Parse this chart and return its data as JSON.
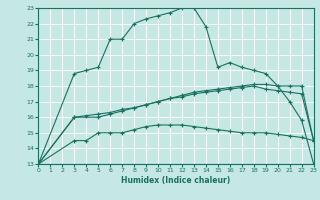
{
  "xlabel": "Humidex (Indice chaleur)",
  "xlim": [
    0,
    23
  ],
  "ylim": [
    13,
    23
  ],
  "xticks": [
    0,
    1,
    2,
    3,
    4,
    5,
    6,
    7,
    8,
    9,
    10,
    11,
    12,
    13,
    14,
    15,
    16,
    17,
    18,
    19,
    20,
    21,
    22,
    23
  ],
  "yticks": [
    13,
    14,
    15,
    16,
    17,
    18,
    19,
    20,
    21,
    22,
    23
  ],
  "background_color": "#c5e8e4",
  "grid_color": "#ffffff",
  "line_color": "#1a7060",
  "line1_x": [
    0,
    23
  ],
  "line1_y": [
    13,
    13
  ],
  "line2_x": [
    0,
    3,
    4,
    5,
    6,
    7,
    8,
    9,
    10,
    11,
    12,
    13,
    14,
    15,
    16,
    17,
    18,
    19,
    20,
    21,
    22,
    23
  ],
  "line2_y": [
    13,
    14.5,
    14.5,
    15.0,
    15.0,
    15.0,
    15.2,
    15.4,
    15.5,
    15.5,
    15.5,
    15.4,
    15.3,
    15.2,
    15.1,
    15.0,
    15.0,
    15.0,
    14.9,
    14.8,
    14.7,
    14.5
  ],
  "line3_x": [
    0,
    3,
    5,
    6,
    7,
    8,
    9,
    10,
    11,
    12,
    13,
    14,
    15,
    16,
    17,
    18,
    19,
    20,
    21,
    22,
    23
  ],
  "line3_y": [
    13,
    16.0,
    16.0,
    16.2,
    16.4,
    16.6,
    16.8,
    17.0,
    17.2,
    17.4,
    17.6,
    17.7,
    17.8,
    17.9,
    18.0,
    18.1,
    18.1,
    18.0,
    18.0,
    18.0,
    14.5
  ],
  "line4_x": [
    0,
    3,
    4,
    5,
    6,
    7,
    8,
    9,
    10,
    11,
    12,
    13,
    14,
    15,
    16,
    17,
    18,
    19,
    20,
    21,
    22,
    23
  ],
  "line4_y": [
    13,
    16.0,
    16.1,
    16.2,
    16.3,
    16.5,
    16.6,
    16.8,
    17.0,
    17.2,
    17.3,
    17.5,
    17.6,
    17.7,
    17.8,
    17.9,
    18.0,
    17.8,
    17.7,
    17.6,
    17.5,
    14.5
  ],
  "line5_x": [
    0,
    3,
    4,
    5,
    6,
    7,
    8,
    9,
    10,
    11,
    12,
    13,
    14,
    15,
    16,
    17,
    18,
    19,
    20,
    21,
    22,
    23
  ],
  "line5_y": [
    13,
    18.8,
    19.0,
    19.2,
    21.0,
    21.0,
    22.0,
    22.3,
    22.5,
    22.7,
    23.0,
    23.0,
    21.8,
    19.2,
    19.5,
    19.2,
    19.0,
    18.8,
    18.0,
    17.0,
    15.8,
    13.0
  ]
}
